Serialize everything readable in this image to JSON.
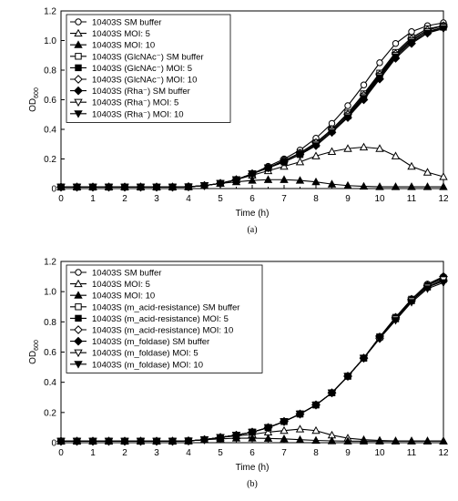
{
  "figure": {
    "panels": [
      {
        "id": "a",
        "label": "(a)"
      },
      {
        "id": "b",
        "label": "(b)"
      }
    ]
  },
  "chart_data": [
    {
      "type": "line",
      "panel_label": "(a)",
      "xlabel": "Time (h)",
      "ylabel": "OD",
      "ylabel_sub": "600",
      "xlim": [
        0,
        12
      ],
      "ylim": [
        0,
        1.2
      ],
      "xticks": [
        0,
        1,
        2,
        3,
        4,
        5,
        6,
        7,
        8,
        9,
        10,
        11,
        12
      ],
      "yticks": [
        0,
        0.2,
        0.4,
        0.6,
        0.8,
        1.0,
        1.2
      ],
      "ytick_labels": [
        "0",
        "0.2",
        "0.4",
        "0.6",
        "0.8",
        "1.0",
        "1.2"
      ],
      "legend_position": "top-left",
      "grid": false,
      "x": [
        0,
        0.5,
        1,
        1.5,
        2,
        2.5,
        3,
        3.5,
        4,
        4.5,
        5,
        5.5,
        6,
        6.5,
        7,
        7.5,
        8,
        8.5,
        9,
        9.5,
        10,
        10.5,
        11,
        11.5,
        12
      ],
      "series": [
        {
          "name": "10403S SM buffer",
          "marker": "circle-open",
          "values": [
            0.01,
            0.01,
            0.01,
            0.01,
            0.01,
            0.01,
            0.01,
            0.01,
            0.012,
            0.02,
            0.035,
            0.06,
            0.1,
            0.15,
            0.2,
            0.26,
            0.34,
            0.44,
            0.56,
            0.7,
            0.85,
            0.98,
            1.06,
            1.1,
            1.12
          ]
        },
        {
          "name": "10403S MOI: 5",
          "marker": "triangle-open",
          "values": [
            0.01,
            0.01,
            0.01,
            0.01,
            0.01,
            0.01,
            0.01,
            0.01,
            0.012,
            0.02,
            0.035,
            0.06,
            0.09,
            0.12,
            0.15,
            0.18,
            0.22,
            0.25,
            0.27,
            0.28,
            0.27,
            0.22,
            0.15,
            0.11,
            0.08
          ]
        },
        {
          "name": "10403S MOI: 10",
          "marker": "triangle-filled",
          "values": [
            0.01,
            0.01,
            0.01,
            0.01,
            0.01,
            0.01,
            0.01,
            0.01,
            0.012,
            0.02,
            0.035,
            0.045,
            0.055,
            0.06,
            0.06,
            0.055,
            0.045,
            0.03,
            0.02,
            0.015,
            0.012,
            0.012,
            0.012,
            0.012,
            0.012
          ]
        },
        {
          "name": "10403S (GlcNAc⁻) SM buffer",
          "marker": "square-open",
          "values": [
            0.01,
            0.01,
            0.01,
            0.01,
            0.01,
            0.01,
            0.01,
            0.01,
            0.012,
            0.02,
            0.035,
            0.06,
            0.1,
            0.14,
            0.19,
            0.24,
            0.31,
            0.4,
            0.51,
            0.64,
            0.78,
            0.92,
            1.02,
            1.08,
            1.1
          ]
        },
        {
          "name": "10403S (GlcNAc⁻) MOI: 5",
          "marker": "square-filled",
          "values": [
            0.01,
            0.01,
            0.01,
            0.01,
            0.01,
            0.01,
            0.01,
            0.01,
            0.012,
            0.02,
            0.035,
            0.06,
            0.1,
            0.14,
            0.18,
            0.23,
            0.3,
            0.39,
            0.49,
            0.62,
            0.76,
            0.9,
            1.0,
            1.06,
            1.09
          ]
        },
        {
          "name": "10403S (GlcNAc⁻) MOI: 10",
          "marker": "diamond-open",
          "values": [
            0.01,
            0.01,
            0.01,
            0.01,
            0.01,
            0.01,
            0.01,
            0.01,
            0.012,
            0.02,
            0.035,
            0.06,
            0.1,
            0.14,
            0.19,
            0.24,
            0.31,
            0.4,
            0.5,
            0.63,
            0.77,
            0.91,
            1.01,
            1.07,
            1.1
          ]
        },
        {
          "name": "10403S (Rha⁻) SM buffer",
          "marker": "diamond-filled",
          "values": [
            0.01,
            0.01,
            0.01,
            0.01,
            0.01,
            0.01,
            0.01,
            0.01,
            0.012,
            0.02,
            0.035,
            0.06,
            0.1,
            0.14,
            0.18,
            0.23,
            0.29,
            0.38,
            0.48,
            0.6,
            0.74,
            0.88,
            0.98,
            1.05,
            1.09
          ]
        },
        {
          "name": "10403S (Rha⁻) MOI: 5",
          "marker": "triangle-down-open",
          "values": [
            0.01,
            0.01,
            0.01,
            0.01,
            0.01,
            0.01,
            0.01,
            0.01,
            0.012,
            0.02,
            0.035,
            0.06,
            0.1,
            0.14,
            0.18,
            0.23,
            0.3,
            0.39,
            0.49,
            0.62,
            0.76,
            0.9,
            1.0,
            1.06,
            1.09
          ]
        },
        {
          "name": "10403S (Rha⁻) MOI: 10",
          "marker": "triangle-down-filled",
          "values": [
            0.01,
            0.01,
            0.01,
            0.01,
            0.01,
            0.01,
            0.01,
            0.01,
            0.012,
            0.02,
            0.035,
            0.06,
            0.1,
            0.14,
            0.18,
            0.23,
            0.29,
            0.38,
            0.48,
            0.61,
            0.75,
            0.89,
            0.99,
            1.05,
            1.08
          ]
        }
      ]
    },
    {
      "type": "line",
      "panel_label": "(b)",
      "xlabel": "Time (h)",
      "ylabel": "OD",
      "ylabel_sub": "600",
      "xlim": [
        0,
        12
      ],
      "ylim": [
        0,
        1.2
      ],
      "xticks": [
        0,
        1,
        2,
        3,
        4,
        5,
        6,
        7,
        8,
        9,
        10,
        11,
        12
      ],
      "yticks": [
        0,
        0.2,
        0.4,
        0.6,
        0.8,
        1.0,
        1.2
      ],
      "ytick_labels": [
        "0",
        "0.2",
        "0.4",
        "0.6",
        "0.8",
        "1.0",
        "1.2"
      ],
      "legend_position": "top-left",
      "grid": false,
      "x": [
        0,
        0.5,
        1,
        1.5,
        2,
        2.5,
        3,
        3.5,
        4,
        4.5,
        5,
        5.5,
        6,
        6.5,
        7,
        7.5,
        8,
        8.5,
        9,
        9.5,
        10,
        10.5,
        11,
        11.5,
        12
      ],
      "series": [
        {
          "name": "10403S SM buffer",
          "marker": "circle-open",
          "values": [
            0.01,
            0.01,
            0.01,
            0.01,
            0.01,
            0.01,
            0.01,
            0.01,
            0.012,
            0.02,
            0.035,
            0.05,
            0.07,
            0.1,
            0.14,
            0.19,
            0.25,
            0.33,
            0.44,
            0.56,
            0.7,
            0.83,
            0.95,
            1.05,
            1.1
          ]
        },
        {
          "name": "10403S MOI: 5",
          "marker": "triangle-open",
          "values": [
            0.01,
            0.01,
            0.01,
            0.01,
            0.01,
            0.01,
            0.01,
            0.01,
            0.012,
            0.02,
            0.035,
            0.045,
            0.055,
            0.07,
            0.08,
            0.09,
            0.08,
            0.05,
            0.03,
            0.02,
            0.015,
            0.012,
            0.012,
            0.012,
            0.012
          ]
        },
        {
          "name": "10403S MOI: 10",
          "marker": "triangle-filled",
          "values": [
            0.01,
            0.01,
            0.01,
            0.01,
            0.01,
            0.01,
            0.01,
            0.01,
            0.012,
            0.02,
            0.025,
            0.03,
            0.03,
            0.028,
            0.025,
            0.02,
            0.015,
            0.012,
            0.01,
            0.01,
            0.01,
            0.01,
            0.01,
            0.01,
            0.01
          ]
        },
        {
          "name": "10403S (m_acid-resistance) SM buffer",
          "marker": "square-open",
          "values": [
            0.01,
            0.01,
            0.01,
            0.01,
            0.01,
            0.01,
            0.01,
            0.01,
            0.012,
            0.02,
            0.035,
            0.05,
            0.07,
            0.1,
            0.14,
            0.19,
            0.25,
            0.33,
            0.44,
            0.56,
            0.7,
            0.83,
            0.95,
            1.04,
            1.09
          ]
        },
        {
          "name": "10403S (m_acid-resistance) MOI: 5",
          "marker": "square-filled",
          "values": [
            0.01,
            0.01,
            0.01,
            0.01,
            0.01,
            0.01,
            0.01,
            0.01,
            0.012,
            0.02,
            0.035,
            0.05,
            0.07,
            0.1,
            0.14,
            0.19,
            0.25,
            0.33,
            0.44,
            0.56,
            0.7,
            0.82,
            0.94,
            1.03,
            1.08
          ]
        },
        {
          "name": "10403S (m_acid-resistance) MOI: 10",
          "marker": "diamond-open",
          "values": [
            0.01,
            0.01,
            0.01,
            0.01,
            0.01,
            0.01,
            0.01,
            0.01,
            0.012,
            0.02,
            0.035,
            0.05,
            0.07,
            0.1,
            0.14,
            0.19,
            0.25,
            0.33,
            0.44,
            0.56,
            0.69,
            0.82,
            0.94,
            1.03,
            1.07
          ]
        },
        {
          "name": "10403S (m_foldase) SM buffer",
          "marker": "diamond-filled",
          "values": [
            0.01,
            0.01,
            0.01,
            0.01,
            0.01,
            0.01,
            0.01,
            0.01,
            0.012,
            0.02,
            0.035,
            0.05,
            0.07,
            0.1,
            0.14,
            0.19,
            0.25,
            0.33,
            0.44,
            0.56,
            0.7,
            0.83,
            0.95,
            1.04,
            1.1
          ]
        },
        {
          "name": "10403S (m_foldase) MOI: 5",
          "marker": "triangle-down-open",
          "values": [
            0.01,
            0.01,
            0.01,
            0.01,
            0.01,
            0.01,
            0.01,
            0.01,
            0.012,
            0.02,
            0.035,
            0.05,
            0.07,
            0.1,
            0.14,
            0.19,
            0.25,
            0.33,
            0.44,
            0.56,
            0.69,
            0.82,
            0.94,
            1.03,
            1.08
          ]
        },
        {
          "name": "10403S (m_foldase) MOI: 10",
          "marker": "triangle-down-filled",
          "values": [
            0.01,
            0.01,
            0.01,
            0.01,
            0.01,
            0.01,
            0.01,
            0.01,
            0.012,
            0.02,
            0.035,
            0.05,
            0.07,
            0.1,
            0.14,
            0.19,
            0.25,
            0.33,
            0.44,
            0.56,
            0.69,
            0.81,
            0.93,
            1.02,
            1.06
          ]
        }
      ]
    }
  ]
}
